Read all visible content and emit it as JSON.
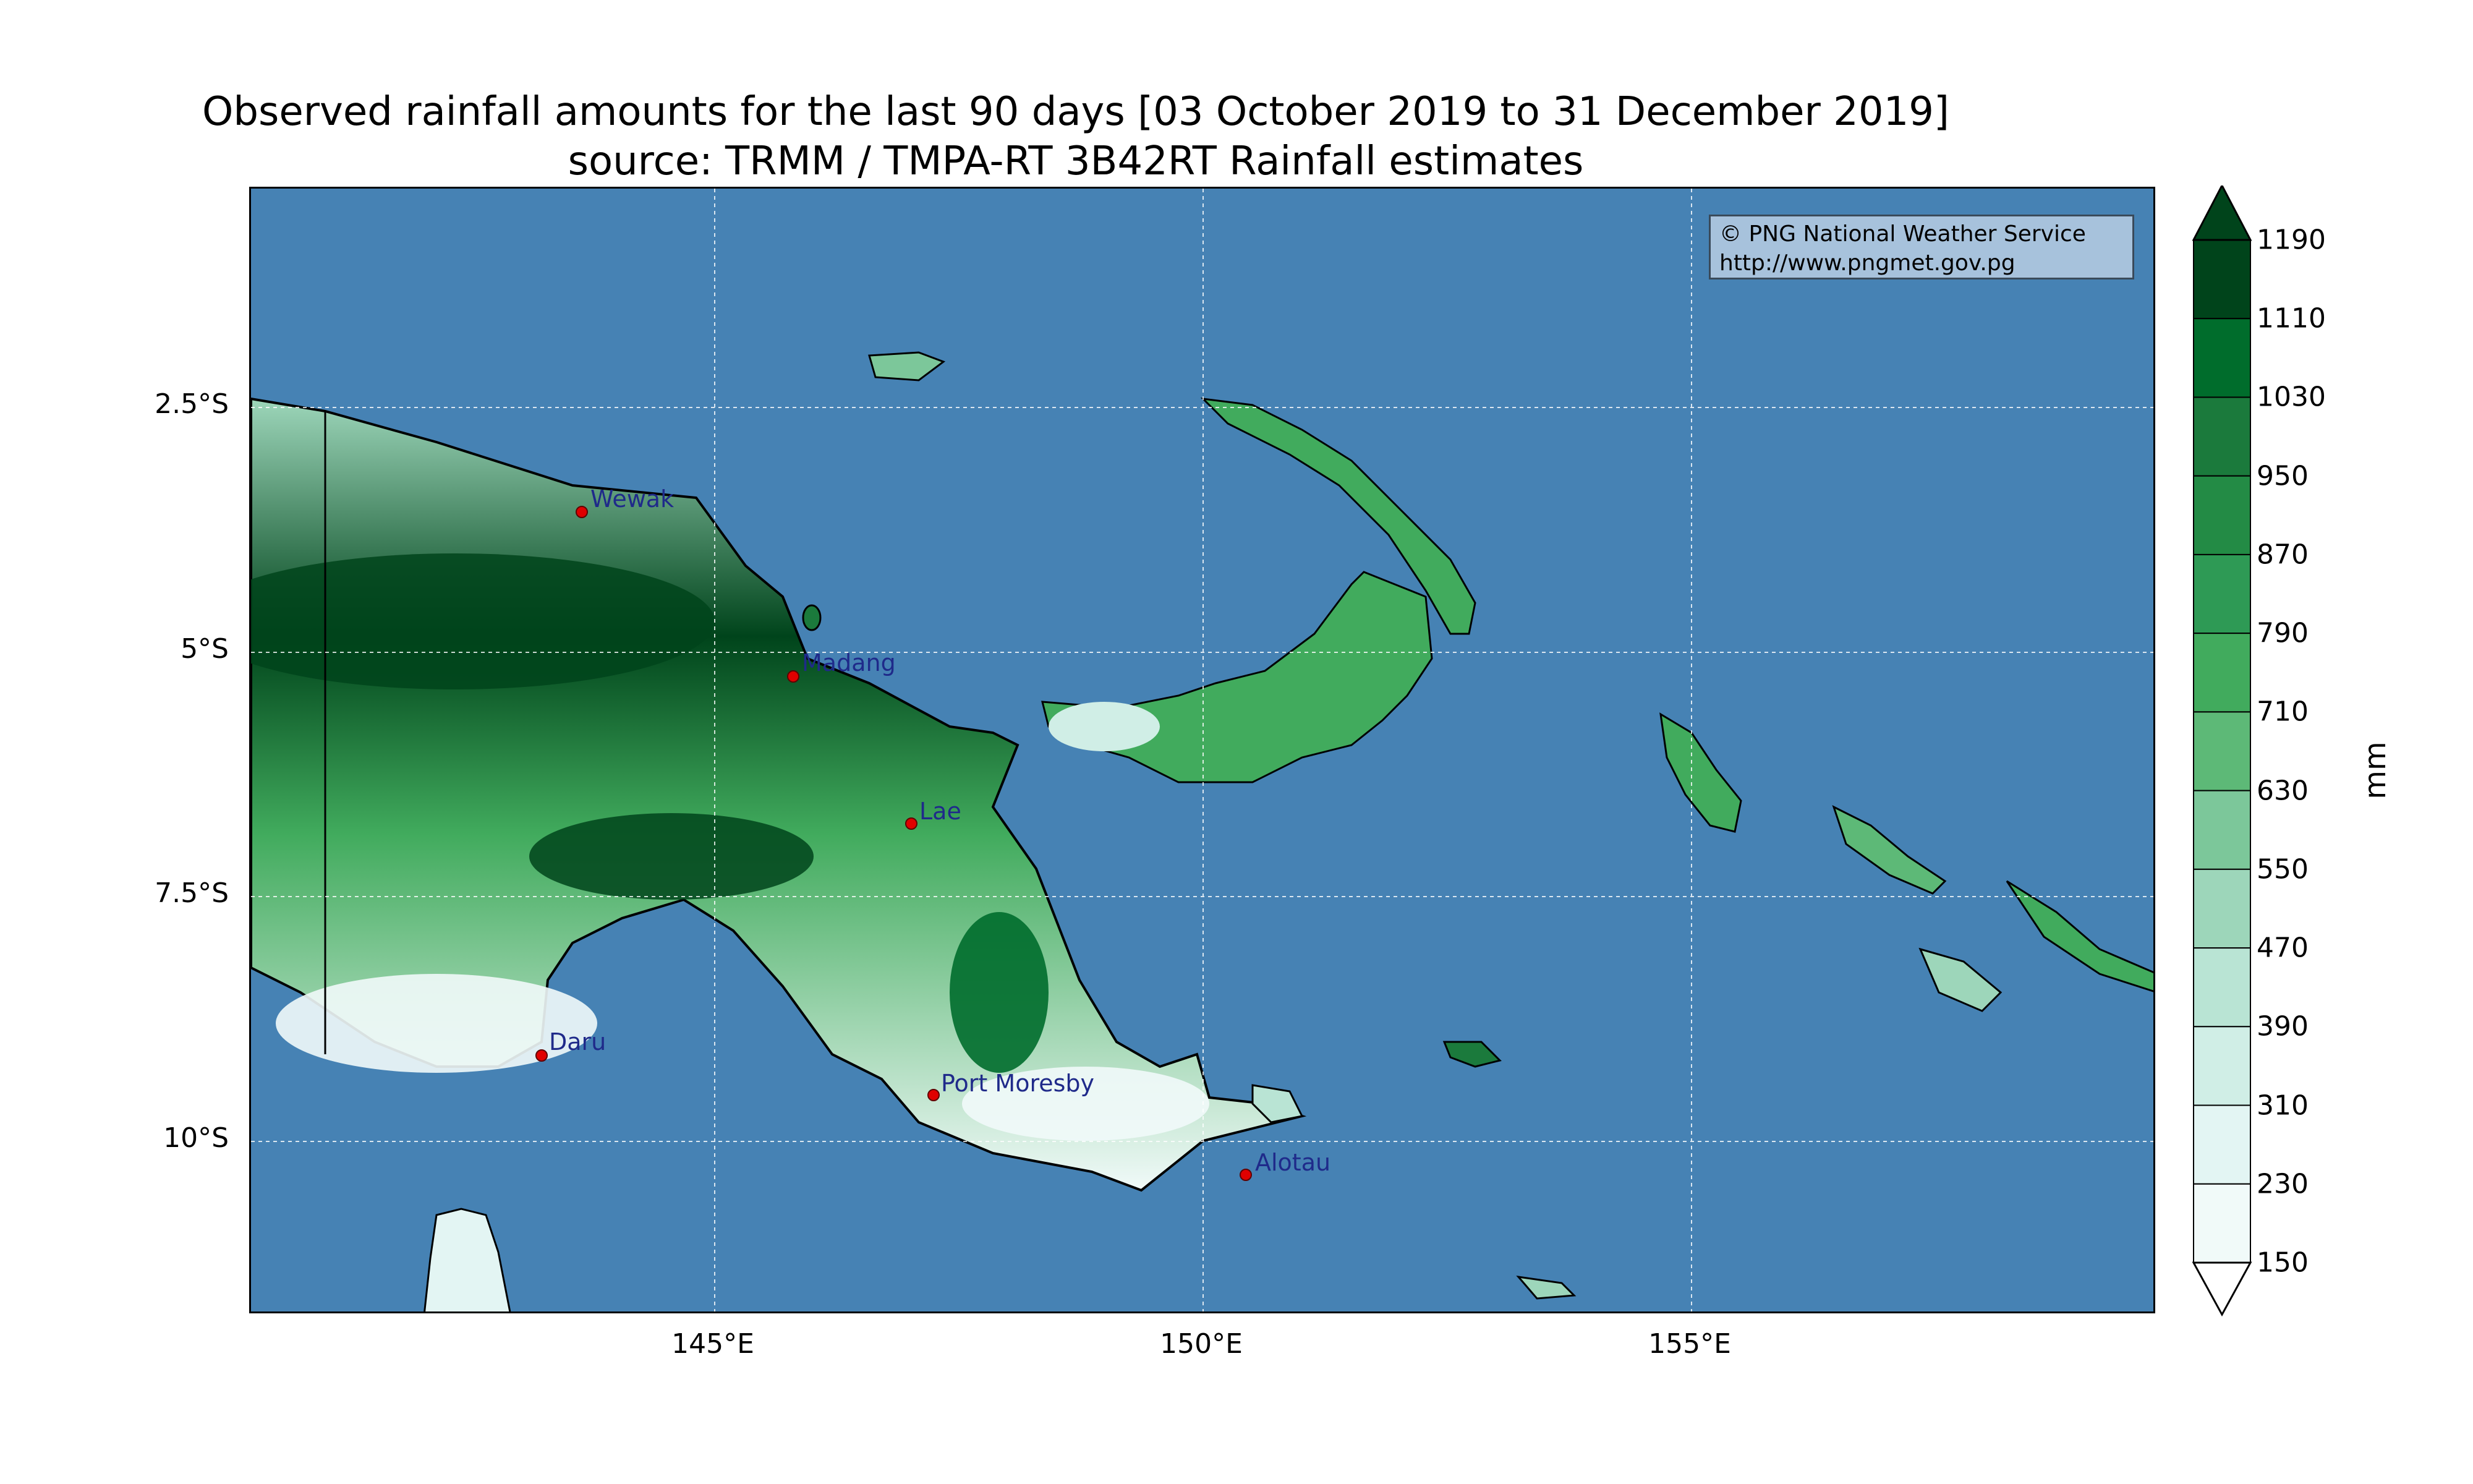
{
  "title": {
    "line1": "Observed rainfall amounts for the last 90 days [03 October 2019 to 31 December 2019]",
    "line2": "source: TRMM / TMPA-RT 3B42RT Rainfall estimates"
  },
  "credit": {
    "line1": "© PNG National Weather Service",
    "line2": "http://www.pngmet.gov.pg"
  },
  "axes": {
    "y_ticks": [
      "2.5°S",
      "5°S",
      "7.5°S",
      "10°S"
    ],
    "x_ticks": [
      "145°E",
      "150°E",
      "155°E"
    ]
  },
  "cities": [
    {
      "name": "Wewak"
    },
    {
      "name": "Madang"
    },
    {
      "name": "Lae"
    },
    {
      "name": "Daru"
    },
    {
      "name": "Port Moresby"
    },
    {
      "name": "Alotau"
    }
  ],
  "colorbar": {
    "unit": "mm",
    "levels": [
      "1190",
      "1110",
      "1030",
      "950",
      "870",
      "790",
      "710",
      "630",
      "550",
      "470",
      "390",
      "310",
      "230",
      "150"
    ],
    "colors": [
      "#00441b",
      "#006d2c",
      "#1b7a3c",
      "#238b45",
      "#2e9a55",
      "#41ab5d",
      "#5db977",
      "#7cc79a",
      "#9dd6ba",
      "#b9e4d4",
      "#d0eee6",
      "#e3f5f3",
      "#f1faf9"
    ],
    "extend_low": "#ffffff",
    "extend_high": "#00441b"
  },
  "colors": {
    "ocean": "#4682b4",
    "city_dot": "#e00000",
    "gridline": "#ffffff"
  }
}
